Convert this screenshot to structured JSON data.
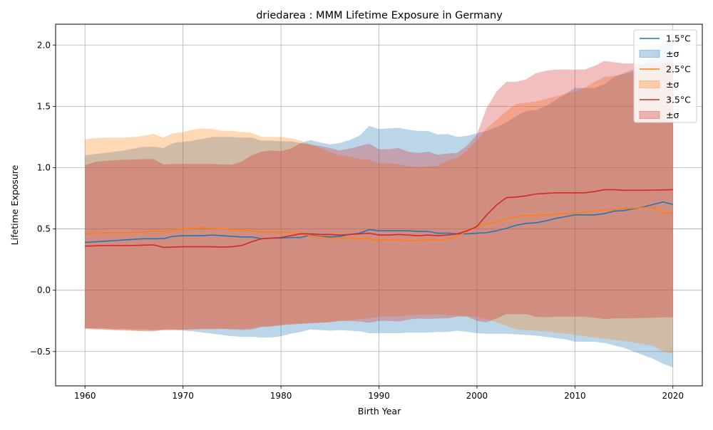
{
  "chart_data": {
    "type": "line",
    "title": "driedarea : MMM Lifetime Exposure in Germany",
    "xlabel": "Birth Year",
    "ylabel": "Lifetime Exposure",
    "xlim": [
      1957,
      2023
    ],
    "ylim": [
      -0.78,
      2.17
    ],
    "xticks": [
      1960,
      1970,
      1980,
      1990,
      2000,
      2010,
      2020
    ],
    "yticks": [
      -0.5,
      0.0,
      0.5,
      1.0,
      1.5,
      2.0
    ],
    "xtick_labels": [
      "1960",
      "1970",
      "1980",
      "1990",
      "2000",
      "2010",
      "2020"
    ],
    "ytick_labels": [
      "−0.5",
      "0.0",
      "0.5",
      "1.0",
      "1.5",
      "2.0"
    ],
    "grid": true,
    "legend_position": "top-right",
    "x": [
      1960,
      1961,
      1962,
      1963,
      1964,
      1965,
      1966,
      1967,
      1968,
      1969,
      1970,
      1971,
      1972,
      1973,
      1974,
      1975,
      1976,
      1977,
      1978,
      1979,
      1980,
      1981,
      1982,
      1983,
      1984,
      1985,
      1986,
      1987,
      1988,
      1989,
      1990,
      1991,
      1992,
      1993,
      1994,
      1995,
      1996,
      1997,
      1998,
      1999,
      2000,
      2001,
      2002,
      2003,
      2004,
      2005,
      2006,
      2007,
      2008,
      2009,
      2010,
      2011,
      2012,
      2013,
      2014,
      2015,
      2016,
      2017,
      2018,
      2019,
      2020
    ],
    "series": [
      {
        "name": "1.5°C",
        "band_label": "±σ",
        "color": "#1f77b4",
        "band_color": "#1f77b4",
        "values": [
          0.39,
          0.395,
          0.4,
          0.405,
          0.41,
          0.415,
          0.42,
          0.42,
          0.42,
          0.44,
          0.445,
          0.445,
          0.445,
          0.45,
          0.445,
          0.44,
          0.435,
          0.435,
          0.42,
          0.425,
          0.425,
          0.43,
          0.43,
          0.45,
          0.44,
          0.435,
          0.44,
          0.455,
          0.465,
          0.495,
          0.485,
          0.485,
          0.485,
          0.485,
          0.48,
          0.48,
          0.465,
          0.465,
          0.46,
          0.46,
          0.465,
          0.47,
          0.485,
          0.505,
          0.53,
          0.545,
          0.55,
          0.565,
          0.585,
          0.6,
          0.615,
          0.615,
          0.615,
          0.625,
          0.645,
          0.65,
          0.665,
          0.68,
          0.7,
          0.72,
          0.7
        ],
        "upper": [
          1.1,
          1.11,
          1.12,
          1.13,
          1.14,
          1.155,
          1.17,
          1.17,
          1.16,
          1.2,
          1.21,
          1.22,
          1.235,
          1.25,
          1.25,
          1.25,
          1.245,
          1.245,
          1.22,
          1.22,
          1.215,
          1.215,
          1.2,
          1.225,
          1.205,
          1.19,
          1.2,
          1.225,
          1.26,
          1.34,
          1.315,
          1.32,
          1.325,
          1.31,
          1.3,
          1.3,
          1.27,
          1.275,
          1.25,
          1.26,
          1.28,
          1.3,
          1.33,
          1.37,
          1.42,
          1.46,
          1.47,
          1.5,
          1.55,
          1.6,
          1.65,
          1.65,
          1.65,
          1.68,
          1.74,
          1.77,
          1.8,
          1.85,
          1.9,
          2.04,
          2.02
        ],
        "lower": [
          -0.31,
          -0.31,
          -0.31,
          -0.315,
          -0.315,
          -0.32,
          -0.32,
          -0.325,
          -0.32,
          -0.32,
          -0.33,
          -0.335,
          -0.345,
          -0.355,
          -0.365,
          -0.375,
          -0.38,
          -0.38,
          -0.385,
          -0.385,
          -0.375,
          -0.355,
          -0.34,
          -0.32,
          -0.325,
          -0.33,
          -0.325,
          -0.33,
          -0.335,
          -0.35,
          -0.35,
          -0.35,
          -0.35,
          -0.345,
          -0.345,
          -0.345,
          -0.34,
          -0.34,
          -0.33,
          -0.34,
          -0.35,
          -0.355,
          -0.355,
          -0.355,
          -0.36,
          -0.365,
          -0.37,
          -0.38,
          -0.39,
          -0.4,
          -0.42,
          -0.42,
          -0.42,
          -0.43,
          -0.45,
          -0.47,
          -0.5,
          -0.53,
          -0.56,
          -0.6,
          -0.63
        ]
      },
      {
        "name": "2.5°C",
        "band_label": "±σ",
        "color": "#ff7f0e",
        "band_color": "#ff7f0e",
        "values": [
          0.46,
          0.465,
          0.47,
          0.47,
          0.47,
          0.47,
          0.475,
          0.485,
          0.48,
          0.49,
          0.5,
          0.505,
          0.51,
          0.505,
          0.5,
          0.495,
          0.49,
          0.485,
          0.475,
          0.475,
          0.475,
          0.47,
          0.46,
          0.445,
          0.435,
          0.425,
          0.425,
          0.425,
          0.42,
          0.42,
          0.41,
          0.41,
          0.41,
          0.405,
          0.405,
          0.41,
          0.41,
          0.415,
          0.44,
          0.48,
          0.52,
          0.54,
          0.56,
          0.58,
          0.6,
          0.61,
          0.61,
          0.615,
          0.62,
          0.625,
          0.63,
          0.635,
          0.645,
          0.655,
          0.66,
          0.665,
          0.67,
          0.675,
          0.675,
          0.63,
          0.63
        ],
        "upper": [
          1.23,
          1.24,
          1.245,
          1.245,
          1.245,
          1.25,
          1.26,
          1.275,
          1.245,
          1.28,
          1.29,
          1.31,
          1.32,
          1.315,
          1.3,
          1.3,
          1.29,
          1.285,
          1.25,
          1.25,
          1.25,
          1.24,
          1.22,
          1.19,
          1.16,
          1.125,
          1.1,
          1.09,
          1.07,
          1.065,
          1.035,
          1.035,
          1.03,
          1.01,
          1.005,
          1.01,
          1.015,
          1.06,
          1.08,
          1.14,
          1.22,
          1.32,
          1.39,
          1.46,
          1.52,
          1.53,
          1.54,
          1.56,
          1.58,
          1.6,
          1.62,
          1.65,
          1.7,
          1.74,
          1.75,
          1.76,
          1.78,
          1.8,
          1.82,
          1.85,
          1.86
        ],
        "lower": [
          -0.31,
          -0.315,
          -0.32,
          -0.325,
          -0.33,
          -0.33,
          -0.33,
          -0.33,
          -0.325,
          -0.325,
          -0.325,
          -0.32,
          -0.32,
          -0.32,
          -0.315,
          -0.315,
          -0.315,
          -0.31,
          -0.295,
          -0.295,
          -0.285,
          -0.275,
          -0.27,
          -0.265,
          -0.265,
          -0.26,
          -0.25,
          -0.245,
          -0.235,
          -0.23,
          -0.215,
          -0.215,
          -0.215,
          -0.205,
          -0.2,
          -0.2,
          -0.195,
          -0.205,
          -0.205,
          -0.21,
          -0.22,
          -0.24,
          -0.26,
          -0.29,
          -0.32,
          -0.325,
          -0.33,
          -0.335,
          -0.345,
          -0.355,
          -0.365,
          -0.375,
          -0.385,
          -0.395,
          -0.405,
          -0.415,
          -0.425,
          -0.44,
          -0.455,
          -0.5,
          -0.52
        ]
      },
      {
        "name": "3.5°C",
        "band_label": "±σ",
        "color": "#d62728",
        "band_color": "#d62728",
        "values": [
          0.36,
          0.362,
          0.365,
          0.365,
          0.365,
          0.365,
          0.368,
          0.37,
          0.35,
          0.352,
          0.355,
          0.355,
          0.355,
          0.355,
          0.352,
          0.355,
          0.365,
          0.395,
          0.42,
          0.425,
          0.43,
          0.445,
          0.46,
          0.46,
          0.455,
          0.455,
          0.45,
          0.455,
          0.46,
          0.465,
          0.45,
          0.45,
          0.455,
          0.45,
          0.445,
          0.45,
          0.445,
          0.45,
          0.46,
          0.485,
          0.52,
          0.615,
          0.695,
          0.755,
          0.76,
          0.77,
          0.785,
          0.79,
          0.795,
          0.795,
          0.795,
          0.795,
          0.805,
          0.82,
          0.82,
          0.815,
          0.815,
          0.815,
          0.817,
          0.818,
          0.82
        ],
        "upper": [
          1.02,
          1.045,
          1.055,
          1.06,
          1.065,
          1.065,
          1.07,
          1.07,
          1.025,
          1.03,
          1.03,
          1.03,
          1.03,
          1.03,
          1.025,
          1.025,
          1.05,
          1.1,
          1.13,
          1.14,
          1.135,
          1.155,
          1.2,
          1.19,
          1.175,
          1.16,
          1.14,
          1.155,
          1.175,
          1.195,
          1.15,
          1.15,
          1.16,
          1.13,
          1.12,
          1.13,
          1.105,
          1.115,
          1.12,
          1.18,
          1.27,
          1.49,
          1.62,
          1.7,
          1.7,
          1.72,
          1.77,
          1.79,
          1.8,
          1.8,
          1.8,
          1.8,
          1.83,
          1.87,
          1.86,
          1.85,
          1.85,
          1.85,
          1.855,
          1.86,
          1.87
        ],
        "lower": [
          -0.315,
          -0.32,
          -0.32,
          -0.325,
          -0.325,
          -0.33,
          -0.335,
          -0.335,
          -0.325,
          -0.325,
          -0.32,
          -0.32,
          -0.315,
          -0.315,
          -0.315,
          -0.32,
          -0.325,
          -0.32,
          -0.3,
          -0.295,
          -0.285,
          -0.28,
          -0.275,
          -0.27,
          -0.265,
          -0.26,
          -0.25,
          -0.25,
          -0.255,
          -0.265,
          -0.25,
          -0.25,
          -0.255,
          -0.24,
          -0.23,
          -0.235,
          -0.23,
          -0.23,
          -0.215,
          -0.215,
          -0.25,
          -0.26,
          -0.23,
          -0.195,
          -0.195,
          -0.195,
          -0.215,
          -0.22,
          -0.215,
          -0.215,
          -0.215,
          -0.215,
          -0.225,
          -0.235,
          -0.23,
          -0.23,
          -0.228,
          -0.226,
          -0.224,
          -0.222,
          -0.22
        ]
      }
    ]
  }
}
